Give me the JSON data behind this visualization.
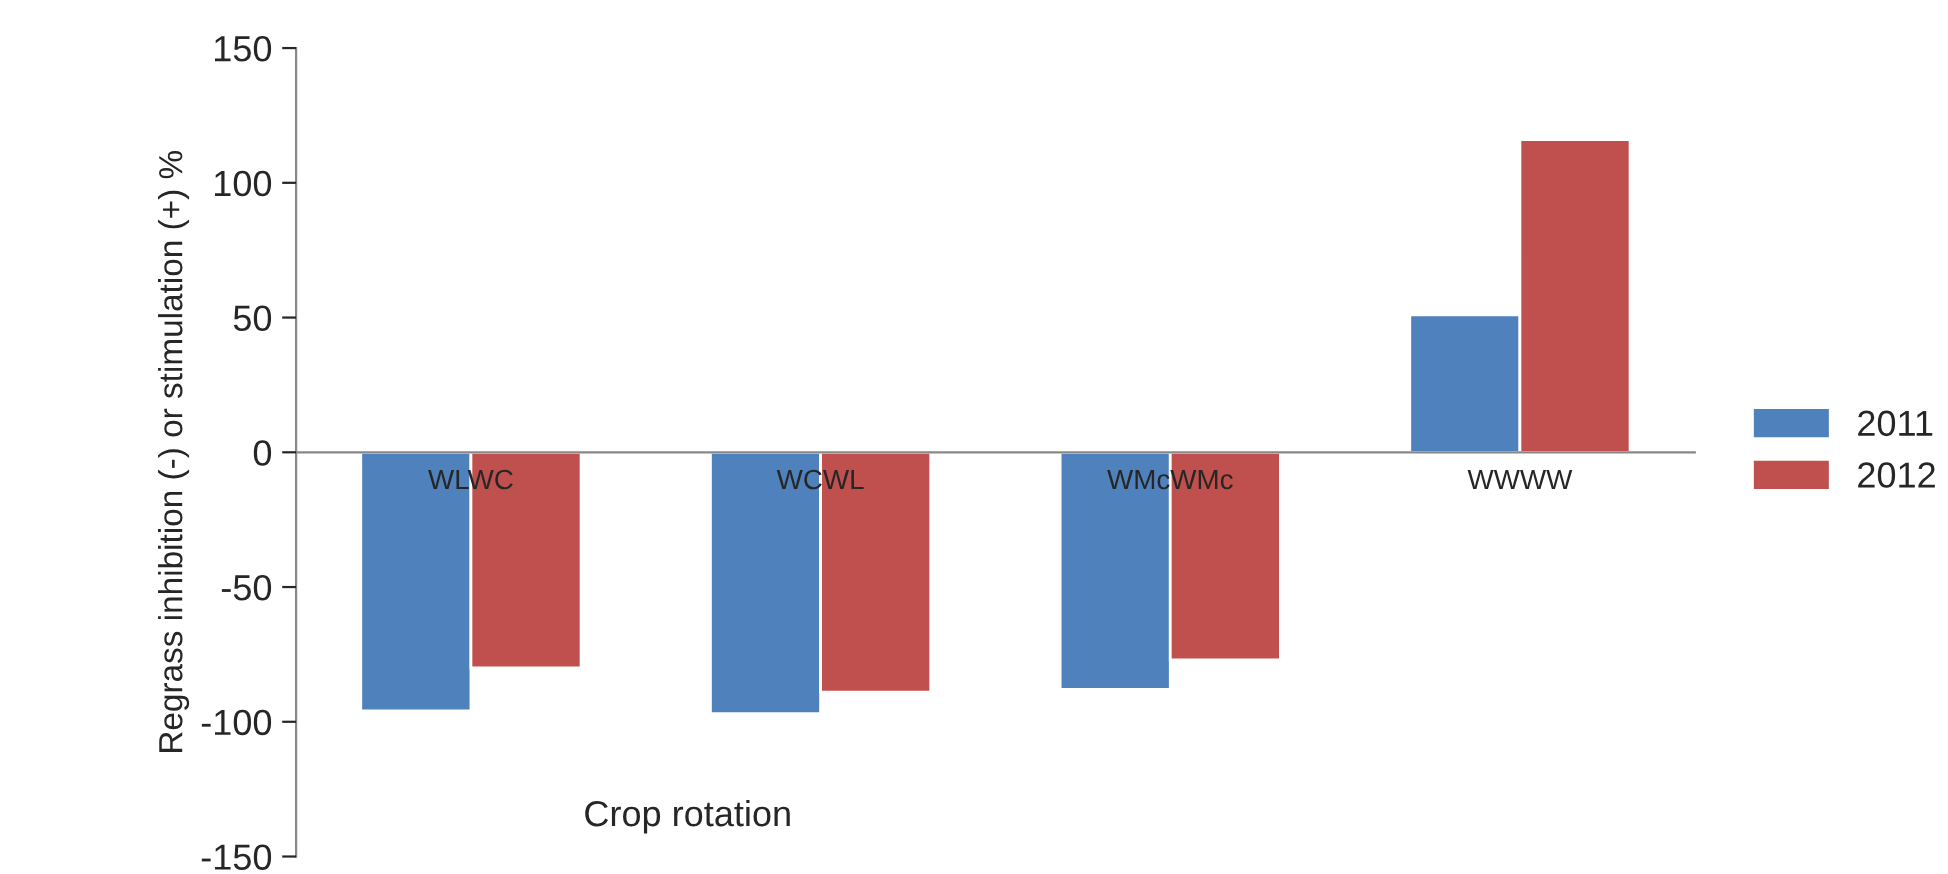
{
  "chart_data": {
    "type": "bar",
    "xlabel": "Crop rotation",
    "ylabel": "Regrass inhibition (-) or stimulation (+) %",
    "categories": [
      "WLWC",
      "WCWL",
      "WMcWMc",
      "WWWW"
    ],
    "series": [
      {
        "name": "2011",
        "color": "#4f81bd",
        "values": [
          -96,
          -97,
          -88,
          51
        ]
      },
      {
        "name": "2012",
        "color": "#c0504d",
        "values": [
          -80,
          -89,
          -77,
          116
        ]
      }
    ],
    "ylim": [
      -150,
      150
    ],
    "yticks": [
      -150,
      -100,
      -50,
      0,
      50,
      100,
      150
    ],
    "grid": false,
    "legend": "right"
  }
}
